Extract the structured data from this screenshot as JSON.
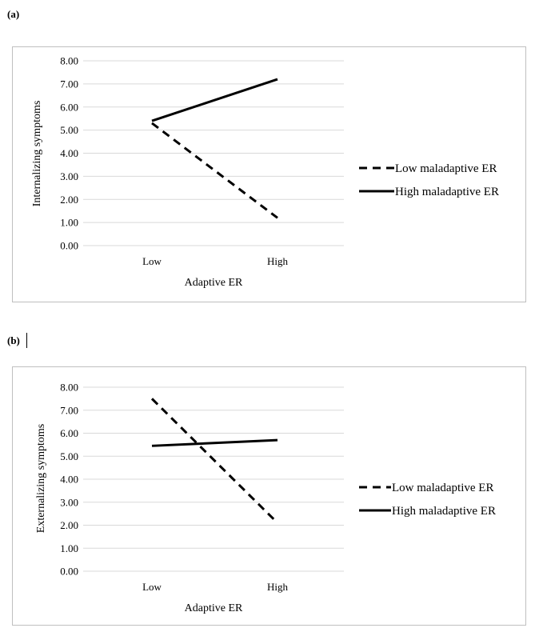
{
  "panels": [
    {
      "label": "(a)"
    },
    {
      "label": "(b)"
    }
  ],
  "chart_data": [
    {
      "type": "line",
      "title": "",
      "categories": [
        "Low",
        "High"
      ],
      "xlabel": "Adaptive ER",
      "ylabel": "Internalizing symptoms",
      "ylim": [
        0,
        8
      ],
      "yticks": [
        "0.00",
        "1.00",
        "2.00",
        "3.00",
        "4.00",
        "5.00",
        "6.00",
        "7.00",
        "8.00"
      ],
      "grid": true,
      "legend": "right",
      "series": [
        {
          "name": "Low maladaptive ER",
          "style": "dashed",
          "values": [
            5.3,
            1.2
          ]
        },
        {
          "name": "High maladaptive ER",
          "style": "solid",
          "values": [
            5.4,
            7.2
          ]
        }
      ]
    },
    {
      "type": "line",
      "title": "",
      "categories": [
        "Low",
        "High"
      ],
      "xlabel": "Adaptive ER",
      "ylabel": "Externalizing symptoms",
      "ylim": [
        0,
        8
      ],
      "yticks": [
        "0.00",
        "1.00",
        "2.00",
        "3.00",
        "4.00",
        "5.00",
        "6.00",
        "7.00",
        "8.00"
      ],
      "grid": true,
      "legend": "right",
      "series": [
        {
          "name": "Low maladaptive ER",
          "style": "dashed",
          "values": [
            7.5,
            2.1
          ]
        },
        {
          "name": "High maladaptive ER",
          "style": "solid",
          "values": [
            5.45,
            5.7
          ]
        }
      ]
    }
  ],
  "colors": {
    "line": "#000000",
    "grid": "#d9d9d9",
    "border": "#bfbfbf"
  }
}
